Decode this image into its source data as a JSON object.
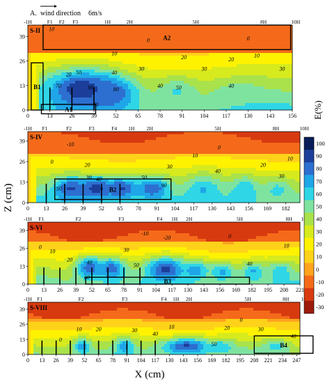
{
  "chart_data": {
    "type": "heatmap",
    "header": {
      "label": "A.",
      "wind_label": "wind direction",
      "wind_speed": "6m/s"
    },
    "xlabel": "X (cm)",
    "ylabel": "Z (cm)",
    "colorbar": {
      "label": "E(%)",
      "ticks": [
        100,
        90,
        80,
        70,
        60,
        50,
        40,
        30,
        20,
        10,
        0,
        -10,
        -20,
        -30
      ],
      "colors": [
        "#081d58",
        "#1c3e9a",
        "#2d6fd0",
        "#1fa6e8",
        "#2fd6e6",
        "#7fe3a0",
        "#a9e24b",
        "#d7ea1e",
        "#fff200",
        "#ffd21a",
        "#ffa41e",
        "#f46a1a",
        "#d83a10",
        "#9c1b0a"
      ]
    },
    "panels": [
      {
        "name": "S-II",
        "x_ticks": [
          0,
          13,
          26,
          39,
          52,
          65,
          78,
          91,
          104,
          117,
          130,
          143,
          156
        ],
        "x_max": 156,
        "y_ticks": [
          0,
          13,
          26,
          39
        ],
        "y_max": 45,
        "markers": [
          {
            "label": "-1H",
            "x": 0
          },
          {
            "label": "F1",
            "x": 13
          },
          {
            "label": "F2",
            "x": 20
          },
          {
            "label": "F3",
            "x": 28
          },
          {
            "label": "1H",
            "x": 47
          },
          {
            "label": "2H",
            "x": 60
          },
          {
            "label": "5H",
            "x": 99
          },
          {
            "label": "8H",
            "x": 139
          },
          {
            "label": "10H",
            "x": 158
          }
        ],
        "stakes": [
          13,
          26,
          39
        ],
        "contour_labels": [
          {
            "text": "10",
            "x": 14,
            "y": 43
          },
          {
            "text": "0",
            "x": 71,
            "y": 37
          },
          {
            "text": "0",
            "x": 130,
            "y": 38
          },
          {
            "text": "10",
            "x": 51,
            "y": 30
          },
          {
            "text": "20",
            "x": 24,
            "y": 19
          },
          {
            "text": "50",
            "x": 30,
            "y": 20
          },
          {
            "text": "40",
            "x": 51,
            "y": 20
          },
          {
            "text": "30",
            "x": 67,
            "y": 22
          },
          {
            "text": "20",
            "x": 92,
            "y": 28
          },
          {
            "text": "30",
            "x": 104,
            "y": 22
          },
          {
            "text": "20",
            "x": 120,
            "y": 27
          },
          {
            "text": "10",
            "x": 135,
            "y": 29
          },
          {
            "text": "30",
            "x": 150,
            "y": 22
          },
          {
            "text": "40",
            "x": 78,
            "y": 13
          },
          {
            "text": "50",
            "x": 89,
            "y": 12
          },
          {
            "text": "40",
            "x": 120,
            "y": 13
          },
          {
            "text": "70",
            "x": 18,
            "y": 13
          },
          {
            "text": "90",
            "x": 37,
            "y": 12
          },
          {
            "text": "80",
            "x": 52,
            "y": 11
          },
          {
            "text": "70",
            "x": 40,
            "y": 3
          }
        ],
        "boxes": [
          {
            "label": "A2",
            "x0": 9,
            "x1": 155,
            "y0": 32,
            "y1": 45
          },
          {
            "label": "B1",
            "x0": 2,
            "x1": 9,
            "y0": 0,
            "y1": 25
          },
          {
            "label": "A1",
            "x0": 8,
            "x1": 40,
            "y0": -2,
            "y1": 3
          }
        ],
        "hot": [
          {
            "x": 32,
            "y": 11,
            "v": 94,
            "sx": 14,
            "sy": 7
          },
          {
            "x": 48,
            "y": 9,
            "v": 84,
            "sx": 11,
            "sy": 6
          },
          {
            "x": 18,
            "y": 7,
            "v": 65,
            "sx": 8,
            "sy": 6
          },
          {
            "x": 88,
            "y": 10,
            "v": 56,
            "sx": 8,
            "sy": 5
          },
          {
            "x": 124,
            "y": 8,
            "v": 52,
            "sx": 10,
            "sy": 5
          }
        ],
        "profile": {
          "base": 55,
          "decay": 0.58,
          "top": -14
        }
      },
      {
        "name": "S-IV",
        "x_ticks": [
          0,
          13,
          26,
          39,
          52,
          65,
          78,
          91,
          104,
          117,
          130,
          143,
          156,
          169,
          182
        ],
        "x_max": 192,
        "y_ticks": [
          0,
          13,
          26,
          39
        ],
        "y_max": 45,
        "markers": [
          {
            "label": "-1H",
            "x": 0
          },
          {
            "label": "F1",
            "x": 12
          },
          {
            "label": "F2",
            "x": 29
          },
          {
            "label": "F3",
            "x": 45
          },
          {
            "label": "F4",
            "x": 61
          },
          {
            "label": "1H",
            "x": 73
          },
          {
            "label": "2H",
            "x": 86
          },
          {
            "label": "5H",
            "x": 134
          },
          {
            "label": "8H",
            "x": 175
          },
          {
            "label": "10H",
            "x": 195
          }
        ],
        "stakes": [
          13,
          26,
          39,
          52,
          65
        ],
        "contour_labels": [
          {
            "text": "-10",
            "x": 30,
            "y": 37
          },
          {
            "text": "0",
            "x": 17,
            "y": 26
          },
          {
            "text": "0",
            "x": 135,
            "y": 35
          },
          {
            "text": "10",
            "x": 118,
            "y": 30
          },
          {
            "text": "10",
            "x": 185,
            "y": 28
          },
          {
            "text": "20",
            "x": 42,
            "y": 24
          },
          {
            "text": "30",
            "x": 43,
            "y": 16
          },
          {
            "text": "40",
            "x": 50,
            "y": 15
          },
          {
            "text": "50",
            "x": 82,
            "y": 16
          },
          {
            "text": "30",
            "x": 100,
            "y": 23
          },
          {
            "text": "40",
            "x": 134,
            "y": 20
          },
          {
            "text": "20",
            "x": 166,
            "y": 24
          },
          {
            "text": "30",
            "x": 179,
            "y": 17
          },
          {
            "text": "90",
            "x": 96,
            "y": 11
          },
          {
            "text": "50",
            "x": 22,
            "y": 9
          }
        ],
        "boxes": [
          {
            "label": "B2",
            "x0": 19,
            "x1": 101,
            "y0": 2,
            "y1": 15
          }
        ],
        "hot": [
          {
            "x": 30,
            "y": 9,
            "v": 86,
            "sx": 8,
            "sy": 5
          },
          {
            "x": 48,
            "y": 9,
            "v": 90,
            "sx": 9,
            "sy": 5
          },
          {
            "x": 66,
            "y": 9,
            "v": 86,
            "sx": 9,
            "sy": 5
          },
          {
            "x": 88,
            "y": 9,
            "v": 84,
            "sx": 8,
            "sy": 5
          },
          {
            "x": 124,
            "y": 8,
            "v": 66,
            "sx": 8,
            "sy": 6
          },
          {
            "x": 153,
            "y": 8,
            "v": 64,
            "sx": 7,
            "sy": 6
          },
          {
            "x": 176,
            "y": 8,
            "v": 58,
            "sx": 7,
            "sy": 5
          }
        ],
        "profile": {
          "base": 56,
          "decay": 0.62,
          "top": -16
        }
      },
      {
        "name": "S-VI",
        "x_ticks": [
          0,
          13,
          26,
          39,
          52,
          65,
          78,
          91,
          104,
          117,
          130,
          143,
          156,
          169,
          182,
          195,
          208,
          221
        ],
        "x_max": 221,
        "y_ticks": [
          0,
          13,
          26,
          39
        ],
        "y_max": 45,
        "markers": [
          {
            "label": "-1H",
            "x": 0
          },
          {
            "label": "F1",
            "x": 11
          },
          {
            "label": "F2",
            "x": 41
          },
          {
            "label": "F3",
            "x": 76
          },
          {
            "label": "F4",
            "x": 107
          },
          {
            "label": "1H",
            "x": 119
          },
          {
            "label": "2H",
            "x": 131
          },
          {
            "label": "5H",
            "x": 172
          },
          {
            "label": "8H",
            "x": 212
          },
          {
            "label": "10H",
            "x": 230
          }
        ],
        "stakes": [
          13,
          26,
          39,
          52,
          65,
          78,
          91
        ],
        "contour_labels": [
          {
            "text": "-10",
            "x": 95,
            "y": 37
          },
          {
            "text": "-20",
            "x": 113,
            "y": 34
          },
          {
            "text": "0",
            "x": 10,
            "y": 27
          },
          {
            "text": "0",
            "x": 164,
            "y": 35
          },
          {
            "text": "10",
            "x": 20,
            "y": 24
          },
          {
            "text": "10",
            "x": 210,
            "y": 28
          },
          {
            "text": "20",
            "x": 34,
            "y": 18
          },
          {
            "text": "30",
            "x": 80,
            "y": 25
          },
          {
            "text": "40",
            "x": 50,
            "y": 16
          },
          {
            "text": "50",
            "x": 88,
            "y": 14
          },
          {
            "text": "40",
            "x": 180,
            "y": 15
          },
          {
            "text": "60",
            "x": 48,
            "y": 5
          }
        ],
        "boxes": [
          {
            "label": "B3",
            "x0": 47,
            "x1": 180,
            "y0": 0,
            "y1": 5
          }
        ],
        "hot": [
          {
            "x": 50,
            "y": 12,
            "v": 82,
            "sx": 8,
            "sy": 6
          },
          {
            "x": 68,
            "y": 11,
            "v": 80,
            "sx": 8,
            "sy": 6
          },
          {
            "x": 112,
            "y": 11,
            "v": 88,
            "sx": 11,
            "sy": 6
          },
          {
            "x": 136,
            "y": 10,
            "v": 70,
            "sx": 8,
            "sy": 5
          },
          {
            "x": 158,
            "y": 9,
            "v": 68,
            "sx": 7,
            "sy": 5
          },
          {
            "x": 183,
            "y": 9,
            "v": 66,
            "sx": 7,
            "sy": 5
          },
          {
            "x": 205,
            "y": 9,
            "v": 62,
            "sx": 7,
            "sy": 5
          }
        ],
        "profile": {
          "base": 52,
          "decay": 0.65,
          "top": -18
        }
      },
      {
        "name": "S-VIII",
        "x_ticks": [
          0,
          13,
          26,
          39,
          52,
          65,
          78,
          91,
          104,
          117,
          130,
          143,
          156,
          169,
          182,
          195,
          208,
          221,
          234,
          247
        ],
        "x_max": 250,
        "y_ticks": [
          0,
          13,
          26,
          39
        ],
        "y_max": 45,
        "markers": [
          {
            "label": "-1H",
            "x": 0
          },
          {
            "label": "F1",
            "x": 11
          },
          {
            "label": "F2",
            "x": 49
          },
          {
            "label": "F3",
            "x": 89
          },
          {
            "label": "F4",
            "x": 125
          },
          {
            "label": "1H",
            "x": 136
          },
          {
            "label": "2H",
            "x": 148
          },
          {
            "label": "5H",
            "x": 202
          },
          {
            "label": "8H",
            "x": 237
          },
          {
            "label": "10H",
            "x": 258
          }
        ],
        "stakes": [
          13,
          26,
          39,
          52,
          65,
          78,
          91,
          104,
          117
        ],
        "contour_labels": [
          {
            "text": "0",
            "x": 30,
            "y": 13
          },
          {
            "text": "10",
            "x": 47,
            "y": 22
          },
          {
            "text": "20",
            "x": 65,
            "y": 22
          },
          {
            "text": "30",
            "x": 98,
            "y": 21
          },
          {
            "text": "10",
            "x": 132,
            "y": 24
          },
          {
            "text": "40",
            "x": 117,
            "y": 18
          },
          {
            "text": "50",
            "x": 171,
            "y": 9
          },
          {
            "text": "20",
            "x": 183,
            "y": 23
          },
          {
            "text": "0",
            "x": 196,
            "y": 30
          },
          {
            "text": "30",
            "x": 214,
            "y": 22
          },
          {
            "text": "40",
            "x": 244,
            "y": 16
          }
        ],
        "boxes": [
          {
            "label": "B4",
            "x0": 208,
            "x1": 262,
            "y0": 1,
            "y1": 16
          }
        ],
        "hot": [
          {
            "x": 50,
            "y": 7,
            "v": 70,
            "sx": 6,
            "sy": 5
          },
          {
            "x": 89,
            "y": 7,
            "v": 72,
            "sx": 6,
            "sy": 5
          },
          {
            "x": 146,
            "y": 7,
            "v": 86,
            "sx": 16,
            "sy": 5
          },
          {
            "x": 178,
            "y": 7,
            "v": 62,
            "sx": 8,
            "sy": 4
          },
          {
            "x": 228,
            "y": 7,
            "v": 60,
            "sx": 8,
            "sy": 4
          }
        ],
        "profile": {
          "base": 48,
          "decay": 0.68,
          "top": -18
        }
      }
    ]
  }
}
